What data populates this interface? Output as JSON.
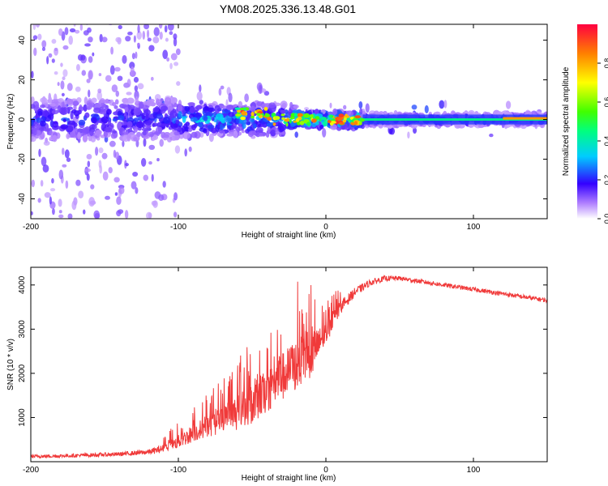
{
  "title": "YM08.2025.336.13.48.G01",
  "colors": {
    "snr_line": "#f03a3a",
    "frame": "#000000"
  },
  "chart_data": [
    {
      "type": "heatmap",
      "name": "spectrogram",
      "xlabel": "Height of straight line (km)",
      "ylabel": "Frequency (Hz)",
      "xlim": [
        -200,
        150
      ],
      "ylim": [
        -50,
        48
      ],
      "xticks": [
        "-200",
        "-100",
        "0",
        "100"
      ],
      "xtick_values": [
        -200,
        -100,
        0,
        100
      ],
      "yticks": [
        "40",
        "20",
        "0",
        "-20",
        "-40"
      ],
      "ytick_values": [
        40,
        20,
        0,
        -20,
        -40
      ],
      "colorbar": {
        "label": "Normalized spectral amplitude",
        "range": [
          0,
          1
        ],
        "ticks": [
          "0.0",
          "0.2",
          "0.4",
          "0.6",
          "0.8"
        ],
        "tick_values": [
          0.0,
          0.2,
          0.4,
          0.6,
          0.8
        ]
      }
    },
    {
      "type": "line",
      "name": "snr",
      "xlabel": "Height of straight line (km)",
      "ylabel": "SNR (10 * v/v)",
      "xlim": [
        -200,
        150
      ],
      "ylim": [
        0,
        4400
      ],
      "xticks": [
        "-200",
        "-100",
        "0",
        "100"
      ],
      "xtick_values": [
        -200,
        -100,
        0,
        100
      ],
      "yticks": [
        "1000",
        "2000",
        "3000",
        "4000"
      ],
      "ytick_values": [
        1000,
        2000,
        3000,
        4000
      ],
      "series": [
        {
          "name": "SNR",
          "x": [
            -200,
            -180,
            -160,
            -140,
            -120,
            -110,
            -100,
            -90,
            -80,
            -70,
            -60,
            -50,
            -40,
            -30,
            -20,
            -10,
            0,
            10,
            20,
            30,
            40,
            50,
            60,
            80,
            100,
            120,
            140,
            150
          ],
          "y": [
            120,
            130,
            150,
            170,
            220,
            300,
            450,
            650,
            800,
            950,
            1100,
            1300,
            1600,
            1900,
            2200,
            2400,
            2900,
            3500,
            3850,
            4050,
            4150,
            4150,
            4100,
            4000,
            3900,
            3800,
            3700,
            3650
          ],
          "spread": [
            80,
            80,
            90,
            90,
            120,
            180,
            300,
            400,
            500,
            600,
            800,
            900,
            1000,
            1100,
            1200,
            1000,
            500,
            300,
            200,
            150,
            120,
            100,
            100,
            100,
            100,
            100,
            100,
            100
          ]
        }
      ]
    }
  ]
}
